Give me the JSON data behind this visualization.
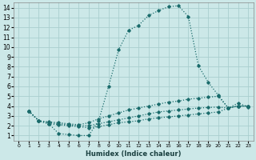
{
  "xlabel": "Humidex (Indice chaleur)",
  "xlim": [
    -0.5,
    23.5
  ],
  "ylim": [
    0.5,
    14.5
  ],
  "xticks": [
    0,
    1,
    2,
    3,
    4,
    5,
    6,
    7,
    8,
    9,
    10,
    11,
    12,
    13,
    14,
    15,
    16,
    17,
    18,
    19,
    20,
    21,
    22,
    23
  ],
  "yticks": [
    1,
    2,
    3,
    4,
    5,
    6,
    7,
    8,
    9,
    10,
    11,
    12,
    13,
    14
  ],
  "bg_color": "#cce8e8",
  "grid_color": "#aacfcf",
  "line_color": "#1a6b6b",
  "curves": [
    {
      "x": [
        1,
        2,
        3,
        4,
        5,
        6,
        7,
        8,
        9,
        10,
        11,
        12,
        13,
        14,
        15,
        16,
        17,
        18,
        19,
        20,
        21,
        22,
        23
      ],
      "y": [
        3.5,
        2.5,
        2.2,
        1.2,
        1.1,
        1.0,
        1.0,
        2.5,
        6.0,
        9.7,
        11.7,
        12.2,
        13.2,
        13.7,
        14.1,
        14.2,
        13.1,
        8.1,
        6.4,
        5.1,
        3.8,
        4.3,
        3.9
      ],
      "linestyle": ":"
    },
    {
      "x": [
        1,
        2,
        3,
        4,
        5,
        6,
        7,
        8,
        9,
        10,
        11,
        12,
        13,
        14,
        15,
        16,
        17,
        18,
        19,
        20,
        21,
        22,
        23
      ],
      "y": [
        3.5,
        2.5,
        2.4,
        2.3,
        2.2,
        2.1,
        2.3,
        2.7,
        3.0,
        3.3,
        3.6,
        3.8,
        4.0,
        4.2,
        4.4,
        4.5,
        4.7,
        4.8,
        4.9,
        5.0,
        3.8,
        4.0,
        4.0
      ],
      "linestyle": ":"
    },
    {
      "x": [
        1,
        2,
        3,
        4,
        5,
        6,
        7,
        8,
        9,
        10,
        11,
        12,
        13,
        14,
        15,
        16,
        17,
        18,
        19,
        20,
        21,
        22,
        23
      ],
      "y": [
        3.5,
        2.5,
        2.3,
        2.2,
        2.1,
        2.0,
        2.0,
        2.2,
        2.4,
        2.6,
        2.8,
        3.0,
        3.2,
        3.4,
        3.5,
        3.6,
        3.7,
        3.8,
        3.85,
        3.9,
        3.8,
        4.0,
        4.0
      ],
      "linestyle": ":"
    },
    {
      "x": [
        1,
        2,
        3,
        4,
        5,
        6,
        7,
        8,
        9,
        10,
        11,
        12,
        13,
        14,
        15,
        16,
        17,
        18,
        19,
        20,
        21,
        22,
        23
      ],
      "y": [
        3.5,
        2.5,
        2.2,
        2.1,
        2.0,
        1.9,
        1.8,
        1.9,
        2.1,
        2.3,
        2.4,
        2.5,
        2.7,
        2.8,
        2.9,
        3.0,
        3.1,
        3.2,
        3.3,
        3.4,
        3.8,
        4.0,
        4.0
      ],
      "linestyle": ":"
    }
  ]
}
